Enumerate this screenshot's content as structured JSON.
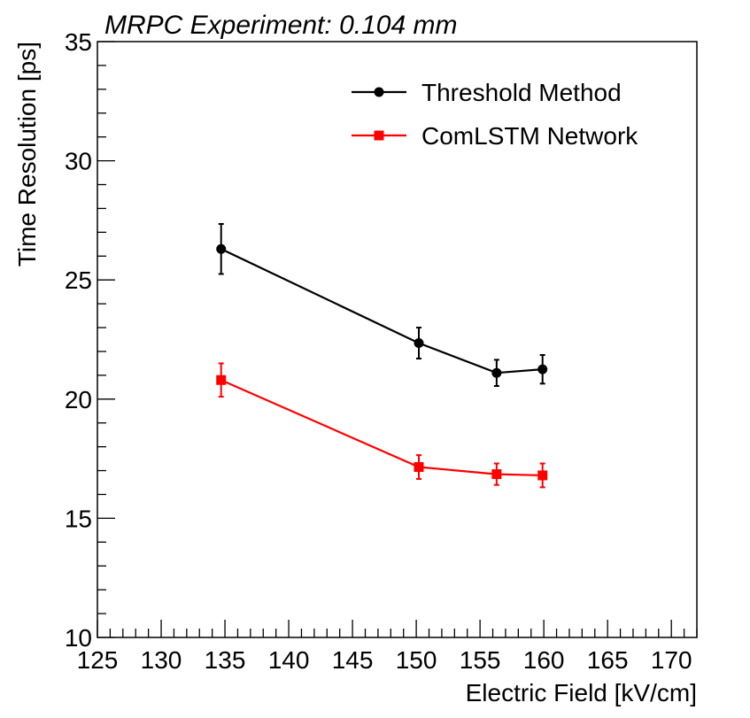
{
  "chart_data": {
    "type": "line",
    "title": "MRPC Experiment: 0.104 mm",
    "xlabel": "Electric Field [kV/cm]",
    "ylabel": "Time Resolution [ps]",
    "xlim": [
      125,
      172
    ],
    "ylim": [
      10,
      35
    ],
    "x_ticks": [
      125,
      130,
      135,
      140,
      145,
      150,
      155,
      160,
      165,
      170
    ],
    "y_ticks": [
      10,
      15,
      20,
      25,
      30,
      35
    ],
    "legend_position": "top-right",
    "series": [
      {
        "name": "Threshold Method",
        "color": "#000000",
        "marker": "circle",
        "x": [
          134.7,
          150.2,
          156.3,
          159.9
        ],
        "y": [
          26.3,
          22.35,
          21.1,
          21.25
        ],
        "err": [
          1.05,
          0.65,
          0.55,
          0.6
        ]
      },
      {
        "name": "ComLSTM Network",
        "color": "#ff0000",
        "marker": "square",
        "x": [
          134.7,
          150.2,
          156.3,
          159.9
        ],
        "y": [
          20.8,
          17.15,
          16.85,
          16.8
        ],
        "err": [
          0.7,
          0.5,
          0.45,
          0.5
        ]
      }
    ]
  }
}
